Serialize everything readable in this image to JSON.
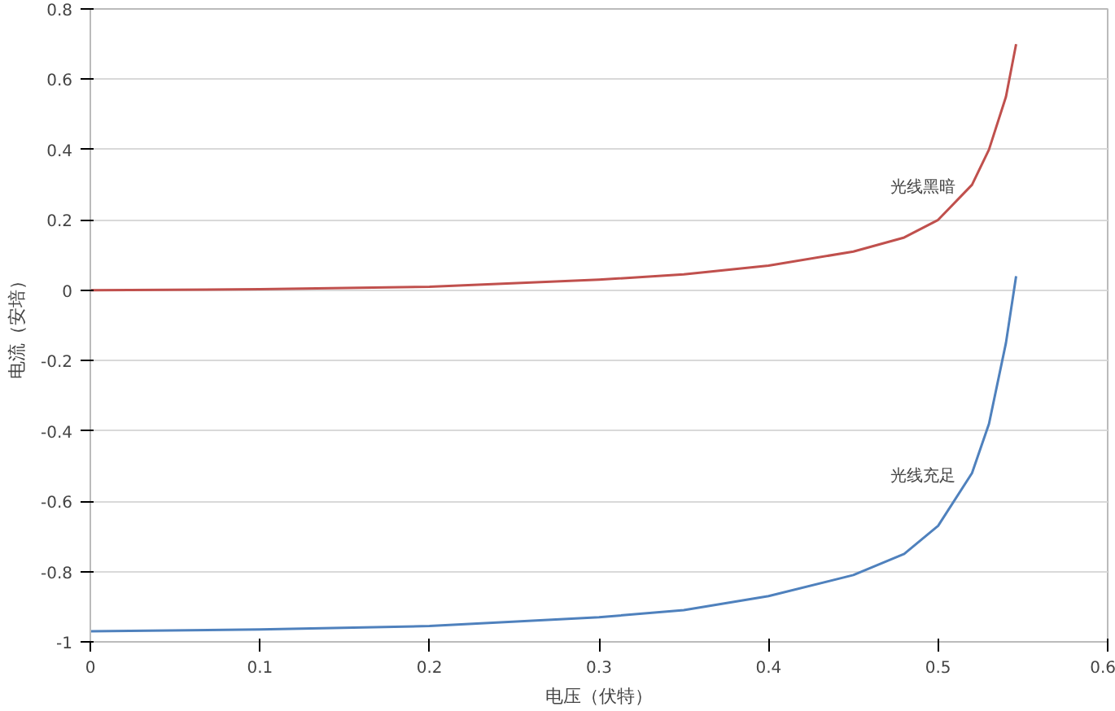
{
  "chart_data": {
    "type": "line",
    "xlabel": "电压（伏特）",
    "ylabel": "电流（安培）",
    "xlim": [
      0,
      0.6
    ],
    "xticks": [
      0,
      0.1,
      0.2,
      0.3,
      0.4,
      0.5,
      0.6
    ],
    "ylim": [
      -1,
      0.8
    ],
    "yticks": [
      -1,
      -0.8,
      -0.6,
      -0.4,
      -0.2,
      0,
      0.2,
      0.4,
      0.6,
      0.8
    ],
    "grid": "y",
    "marker": "none",
    "line_style": "solid",
    "series": [
      {
        "name": "光线黑暗",
        "color": "#c0504d",
        "x": [
          0,
          0.1,
          0.2,
          0.3,
          0.35,
          0.4,
          0.45,
          0.48,
          0.5,
          0.52,
          0.53,
          0.54,
          0.546
        ],
        "values": [
          0,
          0.003,
          0.01,
          0.03,
          0.045,
          0.07,
          0.11,
          0.15,
          0.2,
          0.3,
          0.4,
          0.55,
          0.7
        ]
      },
      {
        "name": "光线充足",
        "color": "#4f81bd",
        "x": [
          0,
          0.1,
          0.2,
          0.3,
          0.35,
          0.4,
          0.45,
          0.48,
          0.5,
          0.52,
          0.53,
          0.54,
          0.546
        ],
        "values": [
          -0.97,
          -0.965,
          -0.955,
          -0.93,
          -0.91,
          -0.87,
          -0.81,
          -0.75,
          -0.67,
          -0.52,
          -0.38,
          -0.15,
          0.04
        ]
      }
    ]
  }
}
